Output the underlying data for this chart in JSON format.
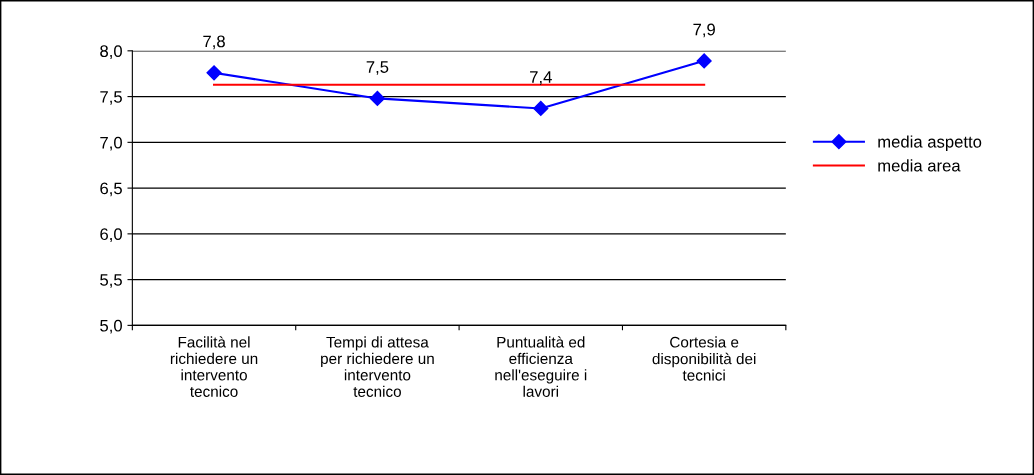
{
  "chart_data": {
    "type": "line",
    "categories": [
      "Facilità nel\nrichiedere un\nintervento\ntecnico",
      "Tempi di attesa\nper richiedere un\nintervento\ntecnico",
      "Puntualità ed\nefficienza\nnell'eseguire i\nlavori",
      "Cortesia e\ndisponibilità dei\ntecnici"
    ],
    "series": [
      {
        "name": "media aspetto",
        "color": "#0000ff",
        "marker": "diamond",
        "values": [
          7.76,
          7.48,
          7.37,
          7.89
        ],
        "value_labels": [
          "7,8",
          "7,5",
          "7,4",
          "7,9"
        ]
      },
      {
        "name": "media area",
        "color": "#ff0000",
        "marker": "none",
        "values": [
          7.63,
          7.63,
          7.63,
          7.63
        ]
      }
    ],
    "ylim": [
      5.0,
      8.0
    ],
    "yticks": [
      {
        "value": 5.0,
        "label": "5,0"
      },
      {
        "value": 5.5,
        "label": "5,5"
      },
      {
        "value": 6.0,
        "label": "6,0"
      },
      {
        "value": 6.5,
        "label": "6,5"
      },
      {
        "value": 7.0,
        "label": "7,0"
      },
      {
        "value": 7.5,
        "label": "7,5"
      },
      {
        "value": 8.0,
        "label": "8,0"
      }
    ],
    "grid": "y",
    "legend": "right",
    "line_style": "solid"
  }
}
